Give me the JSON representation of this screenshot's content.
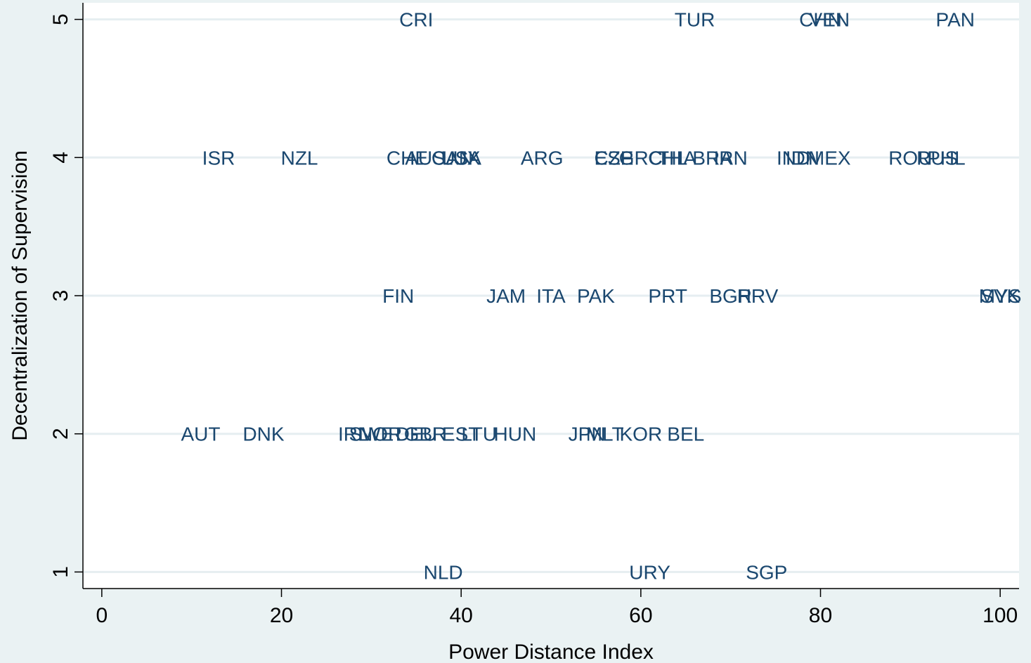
{
  "chart_data": {
    "type": "scatter",
    "x_label": "Power Distance Index",
    "y_label": "Decentralization of Supervision",
    "color": "#1a476f",
    "grid": true,
    "xlim": [
      -2.1,
      102.1
    ],
    "ylim": [
      0.88,
      5.12
    ],
    "xticks": [
      0,
      20,
      40,
      60,
      80,
      100
    ],
    "yticks": [
      1,
      2,
      3,
      4,
      5
    ],
    "labels": [
      "CRI",
      "TUR",
      "CHN",
      "VEN",
      "PAN",
      "ISR",
      "NZL",
      "CHE",
      "CAN",
      "USA",
      "AUS",
      "LUX",
      "ARG",
      "ESP",
      "CZE",
      "GRC",
      "CHL",
      "THA",
      "BRA",
      "IRN",
      "IND",
      "IDN",
      "MEX",
      "ROU",
      "RUS",
      "PHL",
      "FIN",
      "JAM",
      "ITA",
      "PAK",
      "PRT",
      "BGR",
      "HRV",
      "SVK",
      "MYS",
      "AUT",
      "DNK",
      "IRL",
      "SWE",
      "NOR",
      "DEU",
      "GBR",
      "EST",
      "LTU",
      "HUN",
      "JPN",
      "MLT",
      "KOR",
      "BEL",
      "NLD",
      "URY",
      "SGP"
    ],
    "x": [
      35,
      66,
      80,
      81,
      95,
      13,
      22,
      34,
      39,
      40,
      36,
      40,
      49,
      57,
      57,
      60,
      63,
      64,
      68,
      70,
      77,
      78,
      81,
      90,
      93,
      94,
      33,
      45,
      50,
      55,
      63,
      70,
      73,
      100,
      100,
      11,
      18,
      28,
      30,
      31,
      35,
      36,
      40,
      42,
      46,
      54,
      56,
      60,
      65,
      38,
      61,
      74
    ],
    "y": [
      5,
      5,
      5,
      5,
      5,
      4,
      4,
      4,
      4,
      4,
      4,
      4,
      4,
      4,
      4,
      4,
      4,
      4,
      4,
      4,
      4,
      4,
      4,
      4,
      4,
      4,
      3,
      3,
      3,
      3,
      3,
      3,
      3,
      3,
      3,
      2,
      2,
      2,
      2,
      2,
      2,
      2,
      2,
      2,
      2,
      2,
      2,
      2,
      2,
      1,
      1,
      1
    ]
  }
}
